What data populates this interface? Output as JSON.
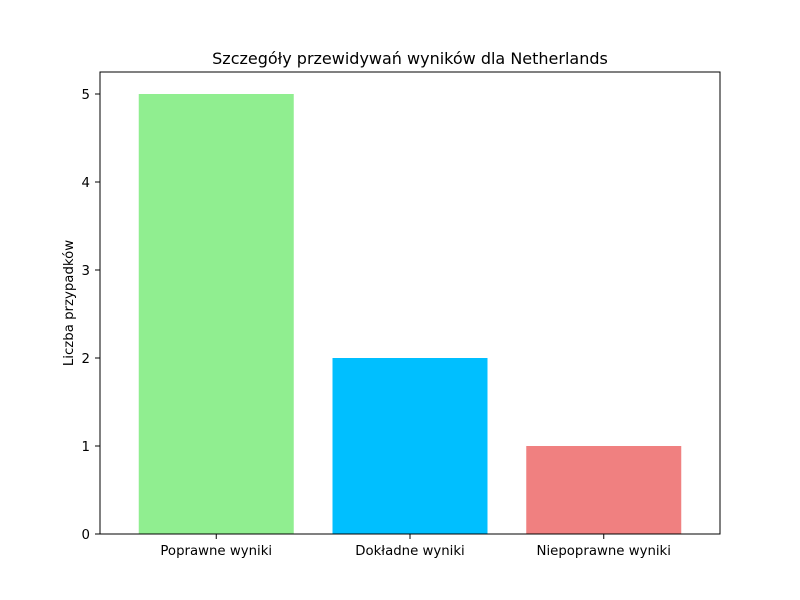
{
  "chart_data": {
    "type": "bar",
    "title": "Szczegóły przewidywań wyników dla Netherlands",
    "xlabel": "",
    "ylabel": "Liczba przypadków",
    "categories": [
      "Poprawne wyniki",
      "Dokładne wyniki",
      "Niepoprawne wyniki"
    ],
    "values": [
      5,
      2,
      1
    ],
    "colors": [
      "#90ee90",
      "#00bfff",
      "#f08080"
    ],
    "ylim": [
      0,
      5.25
    ],
    "yticks": [
      "0",
      "1",
      "2",
      "3",
      "4",
      "5"
    ],
    "grid": false,
    "legend": "none"
  }
}
